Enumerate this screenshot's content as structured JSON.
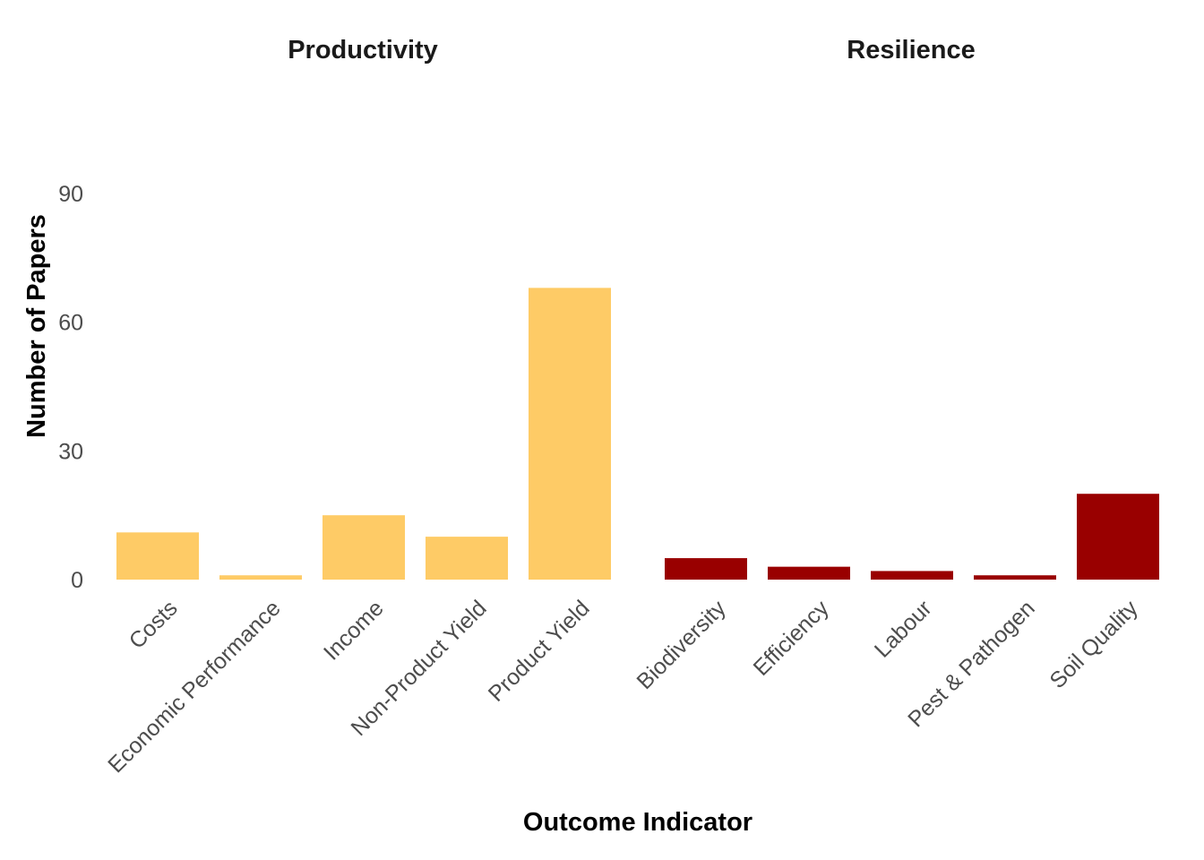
{
  "chart_data": {
    "type": "bar",
    "xlabel": "Outcome Indicator",
    "ylabel": "Number of Papers",
    "ylim": [
      0,
      95
    ],
    "yticks": [
      0,
      30,
      60,
      90
    ],
    "grid": false,
    "legend": "none",
    "facets": [
      {
        "title": "Productivity",
        "color": "#FECB66",
        "categories": [
          "Costs",
          "Economic Performance",
          "Income",
          "Non-Product Yield",
          "Product Yield"
        ],
        "values": [
          11,
          1,
          15,
          10,
          68
        ]
      },
      {
        "title": "Resilience",
        "color": "#990000",
        "categories": [
          "Biodiversity",
          "Efficiency",
          "Labour",
          "Pest & Pathogen",
          "Soil Quality"
        ],
        "values": [
          5,
          3,
          2,
          1,
          20
        ]
      }
    ]
  }
}
